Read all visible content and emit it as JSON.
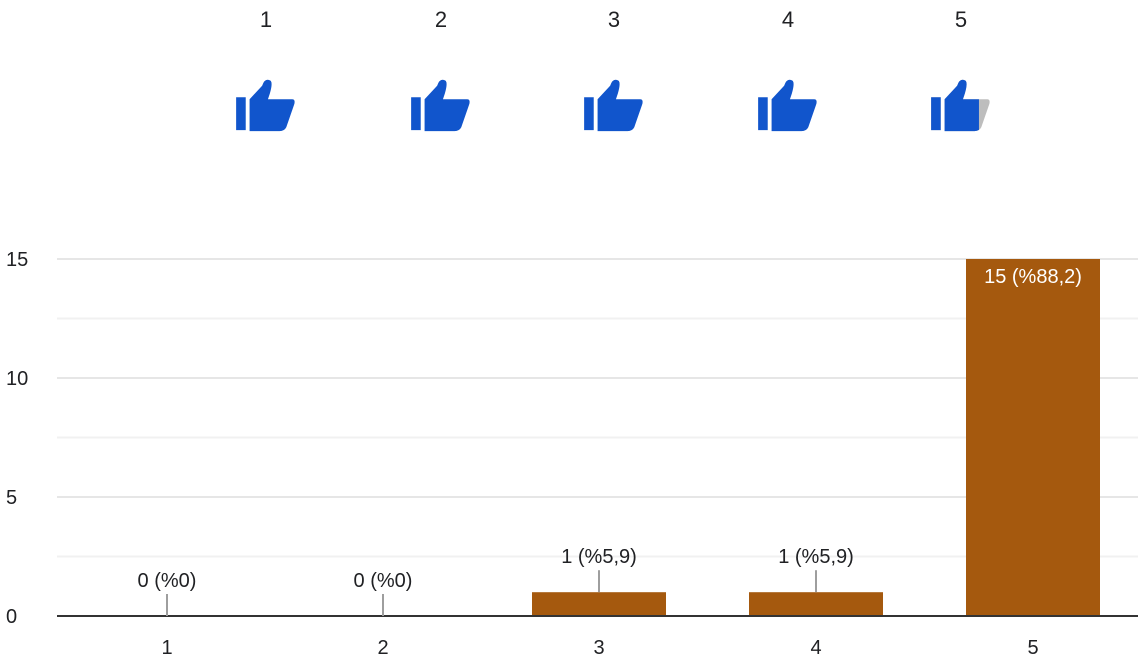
{
  "rating_scale": {
    "items": [
      {
        "label": "1",
        "fill": 1.0
      },
      {
        "label": "2",
        "fill": 1.0
      },
      {
        "label": "3",
        "fill": 1.0
      },
      {
        "label": "4",
        "fill": 1.0
      },
      {
        "label": "5",
        "fill": 0.8
      }
    ],
    "icon": "thumbs-up-icon",
    "icon_color": "#1155cc",
    "icon_empty_color": "#bdbdbd"
  },
  "chart_data": {
    "type": "bar",
    "categories": [
      "1",
      "2",
      "3",
      "4",
      "5"
    ],
    "values": [
      0,
      0,
      1,
      1,
      15
    ],
    "data_labels": [
      "0 (%0)",
      "0 (%0)",
      "1 (%5,9)",
      "1 (%5,9)",
      "15 (%88,2)"
    ],
    "y_ticks": [
      "0",
      "5",
      "10",
      "15"
    ],
    "ylim": [
      0,
      15
    ],
    "grid": true,
    "bar_color": "#a5590e"
  }
}
